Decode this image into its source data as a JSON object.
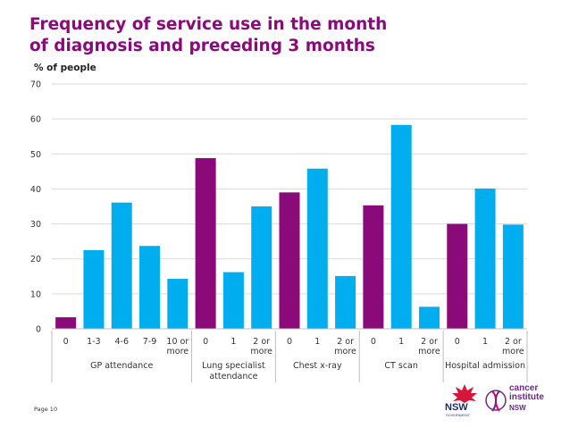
{
  "slide": {
    "title": "Frequency of service use in the month of diagnosis and preceding 3 months",
    "footer": "Page 10",
    "logos": {
      "nsw_text": "NSW",
      "nsw_sub": "GOVERNMENT",
      "cancer_institute_line1": "cancer",
      "cancer_institute_line2": "institute",
      "cancer_institute_line3": "NSW"
    }
  },
  "colors": {
    "purple": "#8a0a7a",
    "blue": "#00aeef",
    "grid": "#d9d9d9",
    "axis_text": "#333333"
  },
  "chart_data": {
    "type": "bar",
    "ylabel": "% of people",
    "ylim": [
      0,
      70
    ],
    "yticks": [
      0,
      10,
      20,
      30,
      40,
      50,
      60,
      70
    ],
    "grid": true,
    "groups": [
      {
        "name": "GP attendance",
        "bars": [
          {
            "label": "0",
            "value": 3.3,
            "color": "purple"
          },
          {
            "label": "1-3",
            "value": 22.5,
            "color": "blue"
          },
          {
            "label": "4-6",
            "value": 36.1,
            "color": "blue"
          },
          {
            "label": "7-9",
            "value": 23.7,
            "color": "blue"
          },
          {
            "label": "10 or more",
            "value": 14.3,
            "color": "blue"
          }
        ]
      },
      {
        "name": "Lung specialist attendance",
        "bars": [
          {
            "label": "0",
            "value": 48.8,
            "color": "purple"
          },
          {
            "label": "1",
            "value": 16.2,
            "color": "blue"
          },
          {
            "label": "2 or more",
            "value": 35.0,
            "color": "blue"
          }
        ]
      },
      {
        "name": "Chest x-ray",
        "bars": [
          {
            "label": "0",
            "value": 39.0,
            "color": "purple"
          },
          {
            "label": "1",
            "value": 45.8,
            "color": "blue"
          },
          {
            "label": "2 or more",
            "value": 15.1,
            "color": "blue"
          }
        ]
      },
      {
        "name": "CT scan",
        "bars": [
          {
            "label": "0",
            "value": 35.3,
            "color": "purple"
          },
          {
            "label": "1",
            "value": 58.3,
            "color": "blue"
          },
          {
            "label": "2 or more",
            "value": 6.3,
            "color": "blue"
          }
        ]
      },
      {
        "name": "Hospital admission",
        "bars": [
          {
            "label": "0",
            "value": 30.0,
            "color": "purple"
          },
          {
            "label": "1",
            "value": 40.1,
            "color": "blue"
          },
          {
            "label": "2 or more",
            "value": 29.8,
            "color": "blue"
          }
        ]
      }
    ]
  }
}
